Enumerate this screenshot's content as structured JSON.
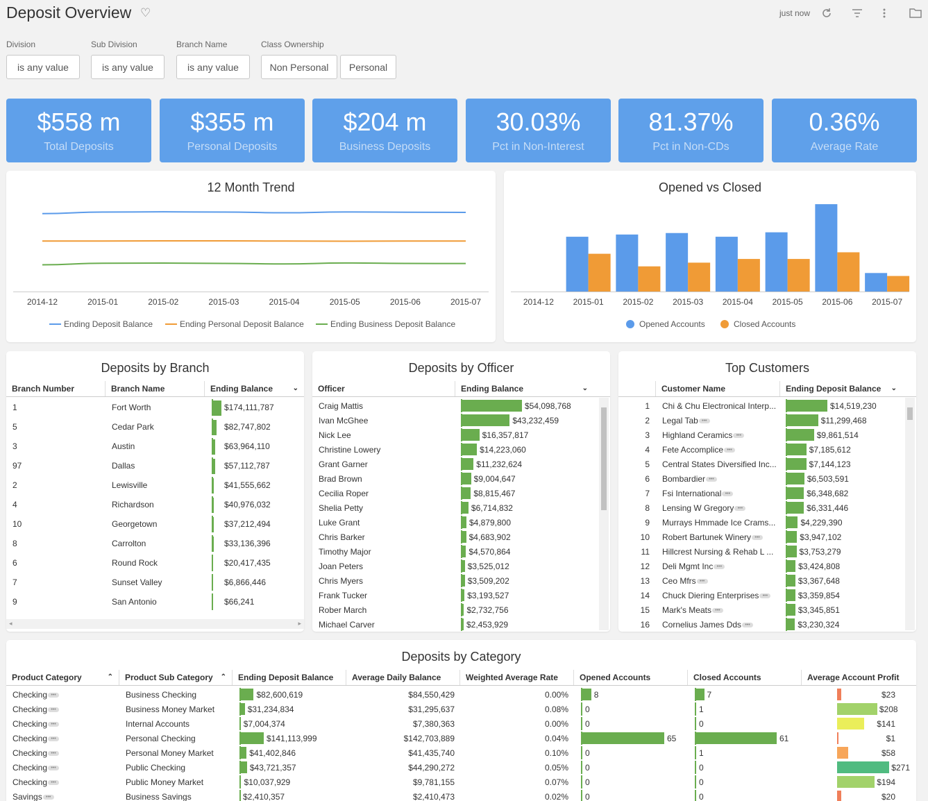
{
  "header": {
    "title": "Deposit Overview",
    "refresh_time": "just now"
  },
  "filters": [
    {
      "label": "Division",
      "value": "is any value"
    },
    {
      "label": "Sub Division",
      "value": "is any value"
    },
    {
      "label": "Branch Name",
      "value": "is any value"
    },
    {
      "label": "Class Ownership",
      "values": [
        "Non Personal",
        "Personal"
      ]
    }
  ],
  "kpis": [
    {
      "value": "$558 m",
      "label": "Total Deposits"
    },
    {
      "value": "$355 m",
      "label": "Personal Deposits"
    },
    {
      "value": "$204 m",
      "label": "Business Deposits"
    },
    {
      "value": "30.03%",
      "label": "Pct in Non-Interest"
    },
    {
      "value": "81.37%",
      "label": "Pct in Non-CDs"
    },
    {
      "value": "0.36%",
      "label": "Average Rate"
    }
  ],
  "chart_data": [
    {
      "type": "line",
      "title": "12 Month Trend",
      "x": [
        "2014-12",
        "2015-01",
        "2015-02",
        "2015-03",
        "2015-04",
        "2015-05",
        "2015-06",
        "2015-07"
      ],
      "series": [
        {
          "name": "Ending Deposit Balance",
          "color": "#5b9bea",
          "values": [
            545,
            556,
            558,
            556,
            551,
            557,
            555,
            554
          ]
        },
        {
          "name": "Ending Personal Deposit Balance",
          "color": "#f09b36",
          "values": [
            355,
            355,
            356,
            356,
            355,
            354,
            355,
            355
          ]
        },
        {
          "name": "Ending Business Deposit Balance",
          "color": "#6aad4f",
          "values": [
            190,
            201,
            202,
            200,
            196,
            203,
            200,
            199
          ]
        }
      ],
      "ylim": [
        0,
        650
      ]
    },
    {
      "type": "bar",
      "title": "Opened vs Closed",
      "categories": [
        "2014-12",
        "2015-01",
        "2015-02",
        "2015-03",
        "2015-04",
        "2015-05",
        "2015-06",
        "2015-07"
      ],
      "series": [
        {
          "name": "Opened Accounts",
          "color": "#5b9bea",
          "values": [
            0,
            74,
            77,
            79,
            74,
            80,
            118,
            25
          ]
        },
        {
          "name": "Closed Accounts",
          "color": "#f09b36",
          "values": [
            0,
            51,
            34,
            39,
            44,
            44,
            53,
            21
          ]
        }
      ],
      "ylim": [
        0,
        120
      ]
    }
  ],
  "branch_table": {
    "title": "Deposits by Branch",
    "columns": [
      "Branch Number",
      "Branch Name",
      "Ending Balance"
    ],
    "rows": [
      {
        "num": "1",
        "name": "Fort Worth",
        "bal": "$174,111,787",
        "v": 174111787
      },
      {
        "num": "5",
        "name": "Cedar Park",
        "bal": "$82,747,802",
        "v": 82747802
      },
      {
        "num": "3",
        "name": "Austin",
        "bal": "$63,964,110",
        "v": 63964110
      },
      {
        "num": "97",
        "name": "Dallas",
        "bal": "$57,112,787",
        "v": 57112787
      },
      {
        "num": "2",
        "name": "Lewisville",
        "bal": "$41,555,662",
        "v": 41555662
      },
      {
        "num": "4",
        "name": "Richardson",
        "bal": "$40,976,032",
        "v": 40976032
      },
      {
        "num": "10",
        "name": "Georgetown",
        "bal": "$37,212,494",
        "v": 37212494
      },
      {
        "num": "8",
        "name": "Carrolton",
        "bal": "$33,136,396",
        "v": 33136396
      },
      {
        "num": "6",
        "name": "Round Rock",
        "bal": "$20,417,435",
        "v": 20417435
      },
      {
        "num": "7",
        "name": "Sunset Valley",
        "bal": "$6,866,446",
        "v": 6866446
      },
      {
        "num": "9",
        "name": "San Antonio",
        "bal": "$66,241",
        "v": 66241
      }
    ]
  },
  "officer_table": {
    "title": "Deposits by Officer",
    "columns": [
      "Officer",
      "Ending Balance"
    ],
    "rows": [
      {
        "name": "Craig Mattis",
        "bal": "$54,098,768",
        "v": 54098768
      },
      {
        "name": "Ivan McGhee",
        "bal": "$43,232,459",
        "v": 43232459
      },
      {
        "name": "Nick Lee",
        "bal": "$16,357,817",
        "v": 16357817
      },
      {
        "name": "Christine Lowery",
        "bal": "$14,223,060",
        "v": 14223060
      },
      {
        "name": "Grant Garner",
        "bal": "$11,232,624",
        "v": 11232624
      },
      {
        "name": "Brad Brown",
        "bal": "$9,004,647",
        "v": 9004647
      },
      {
        "name": "Cecilia Roper",
        "bal": "$8,815,467",
        "v": 8815467
      },
      {
        "name": "Shelia Petty",
        "bal": "$6,714,832",
        "v": 6714832
      },
      {
        "name": "Luke Grant",
        "bal": "$4,879,800",
        "v": 4879800
      },
      {
        "name": "Chris Barker",
        "bal": "$4,683,902",
        "v": 4683902
      },
      {
        "name": "Timothy Major",
        "bal": "$4,570,864",
        "v": 4570864
      },
      {
        "name": "Joan Peters",
        "bal": "$3,525,012",
        "v": 3525012
      },
      {
        "name": "Chris Myers",
        "bal": "$3,509,202",
        "v": 3509202
      },
      {
        "name": "Frank Tucker",
        "bal": "$3,193,527",
        "v": 3193527
      },
      {
        "name": "Rober March",
        "bal": "$2,732,756",
        "v": 2732756
      },
      {
        "name": "Michael Carver",
        "bal": "$2,453,929",
        "v": 2453929
      }
    ]
  },
  "customer_table": {
    "title": "Top Customers",
    "columns": [
      "Customer Name",
      "Ending Deposit Balance"
    ],
    "rows": [
      {
        "rank": "1",
        "name": "Chi & Chu Electronical Interp...",
        "bal": "$14,519,230",
        "v": 14519230,
        "more": false
      },
      {
        "rank": "2",
        "name": "Legal Tab",
        "bal": "$11,299,468",
        "v": 11299468,
        "more": true
      },
      {
        "rank": "3",
        "name": "Highland Ceramics",
        "bal": "$9,861,514",
        "v": 9861514,
        "more": true
      },
      {
        "rank": "4",
        "name": "Fete Accomplice",
        "bal": "$7,185,612",
        "v": 7185612,
        "more": true
      },
      {
        "rank": "5",
        "name": "Central States Diversified Inc...",
        "bal": "$7,144,123",
        "v": 7144123,
        "more": false
      },
      {
        "rank": "6",
        "name": "Bombardier",
        "bal": "$6,503,591",
        "v": 6503591,
        "more": true
      },
      {
        "rank": "7",
        "name": "Fsi International",
        "bal": "$6,348,682",
        "v": 6348682,
        "more": true
      },
      {
        "rank": "8",
        "name": "Lensing W Gregory",
        "bal": "$6,331,446",
        "v": 6331446,
        "more": true
      },
      {
        "rank": "9",
        "name": "Murrays Hmmade Ice Crams...",
        "bal": "$4,229,390",
        "v": 4229390,
        "more": false
      },
      {
        "rank": "10",
        "name": "Robert Bartunek Winery",
        "bal": "$3,947,102",
        "v": 3947102,
        "more": true
      },
      {
        "rank": "11",
        "name": "Hillcrest Nursing & Rehab L ...",
        "bal": "$3,753,279",
        "v": 3753279,
        "more": false
      },
      {
        "rank": "12",
        "name": "Deli Mgmt Inc",
        "bal": "$3,424,808",
        "v": 3424808,
        "more": true
      },
      {
        "rank": "13",
        "name": "Ceo Mfrs",
        "bal": "$3,367,648",
        "v": 3367648,
        "more": true
      },
      {
        "rank": "14",
        "name": "Chuck Diering Enterprises",
        "bal": "$3,359,854",
        "v": 3359854,
        "more": true
      },
      {
        "rank": "15",
        "name": "Mark's Meats",
        "bal": "$3,345,851",
        "v": 3345851,
        "more": true
      },
      {
        "rank": "16",
        "name": "Cornelius James Dds",
        "bal": "$3,230,324",
        "v": 3230324,
        "more": true
      }
    ]
  },
  "category_table": {
    "title": "Deposits by Category",
    "columns": [
      "Product Category",
      "Product Sub Category",
      "Ending Deposit Balance",
      "Average Daily Balance",
      "Weighted Average Rate",
      "Opened Accounts",
      "Closed Accounts",
      "Average Account Profit"
    ],
    "rows": [
      {
        "cat": "Checking",
        "sub": "Business Checking",
        "edb": "$82,600,619",
        "edbv": 82600619,
        "adb": "$84,550,429",
        "war": "0.00%",
        "open": "8",
        "openv": 8,
        "closed": "7",
        "closedv": 7,
        "profit": "$23",
        "profitv": 23,
        "pcolor": "#f07f5a"
      },
      {
        "cat": "Checking",
        "sub": "Business Money Market",
        "edb": "$31,234,834",
        "edbv": 31234834,
        "adb": "$31,295,637",
        "war": "0.08%",
        "open": "0",
        "openv": 0,
        "closed": "1",
        "closedv": 1,
        "profit": "$208",
        "profitv": 208,
        "pcolor": "#a2d26a"
      },
      {
        "cat": "Checking",
        "sub": "Internal Accounts",
        "edb": "$7,004,374",
        "edbv": 7004374,
        "adb": "$7,380,363",
        "war": "0.00%",
        "open": "0",
        "openv": 0,
        "closed": "0",
        "closedv": 0,
        "profit": "$141",
        "profitv": 141,
        "pcolor": "#eaee5a"
      },
      {
        "cat": "Checking",
        "sub": "Personal Checking",
        "edb": "$141,113,999",
        "edbv": 141113999,
        "adb": "$142,703,889",
        "war": "0.04%",
        "open": "65",
        "openv": 65,
        "closed": "61",
        "closedv": 61,
        "profit": "$1",
        "profitv": 1,
        "pcolor": "#f07f5a"
      },
      {
        "cat": "Checking",
        "sub": "Personal Money Market",
        "edb": "$41,402,846",
        "edbv": 41402846,
        "adb": "$41,435,740",
        "war": "0.10%",
        "open": "0",
        "openv": 0,
        "closed": "1",
        "closedv": 1,
        "profit": "$58",
        "profitv": 58,
        "pcolor": "#f7a65a"
      },
      {
        "cat": "Checking",
        "sub": "Public Checking",
        "edb": "$43,721,357",
        "edbv": 43721357,
        "adb": "$44,290,272",
        "war": "0.05%",
        "open": "0",
        "openv": 0,
        "closed": "0",
        "closedv": 0,
        "profit": "$271",
        "profitv": 271,
        "pcolor": "#50bb80"
      },
      {
        "cat": "Checking",
        "sub": "Public Money Market",
        "edb": "$10,037,929",
        "edbv": 10037929,
        "adb": "$9,781,155",
        "war": "0.07%",
        "open": "0",
        "openv": 0,
        "closed": "0",
        "closedv": 0,
        "profit": "$194",
        "profitv": 194,
        "pcolor": "#a2d26a"
      },
      {
        "cat": "Savings",
        "sub": "Business Savings",
        "edb": "$2,410,357",
        "edbv": 2410357,
        "adb": "$2,410,473",
        "war": "0.02%",
        "open": "0",
        "openv": 0,
        "closed": "0",
        "closedv": 0,
        "profit": "$20",
        "profitv": 20,
        "pcolor": "#f07f5a"
      }
    ]
  }
}
